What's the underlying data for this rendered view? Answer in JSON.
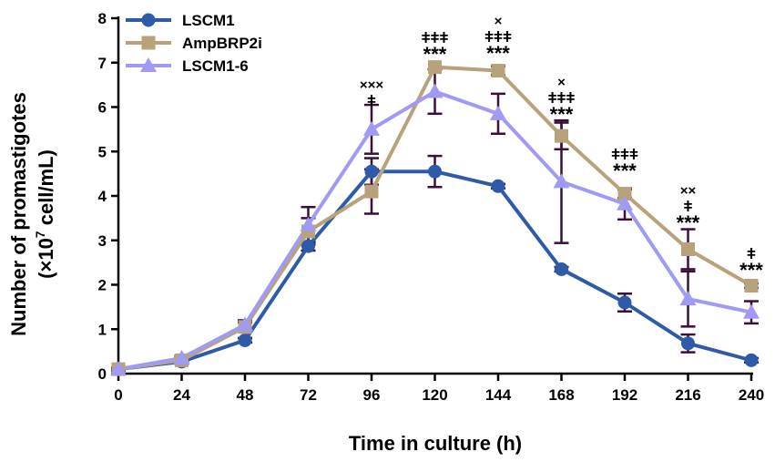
{
  "chart_data": {
    "type": "line",
    "xlabel": "Time in culture (h)",
    "ylabel_line1": "Number of promastigotes",
    "ylabel_line2": "(×10",
    "ylabel_sup": "7",
    "ylabel_line2_end": " cell/mL)",
    "x": [
      0,
      24,
      48,
      72,
      96,
      120,
      144,
      168,
      192,
      216,
      240
    ],
    "xticks": [
      "0",
      "24",
      "48",
      "72",
      "96",
      "120",
      "144",
      "168",
      "192",
      "216",
      "240"
    ],
    "xlim": [
      0,
      240
    ],
    "ylim": [
      0,
      8
    ],
    "yticks": [
      "0",
      "1",
      "2",
      "3",
      "4",
      "5",
      "6",
      "7",
      "8"
    ],
    "series": [
      {
        "name": "LSCM1",
        "color": "#2e5aa7",
        "marker": "circle",
        "values": [
          0.1,
          0.27,
          0.75,
          2.87,
          4.55,
          4.55,
          4.22,
          2.35,
          1.6,
          0.68,
          0.3
        ],
        "errors": [
          0.03,
          0.05,
          0.05,
          0.1,
          0.3,
          0.35,
          0.05,
          0.05,
          0.2,
          0.2,
          0.05
        ]
      },
      {
        "name": "AmpBRP2i",
        "color": "#b8a27c",
        "marker": "square",
        "values": [
          0.1,
          0.3,
          1.05,
          3.2,
          4.1,
          6.9,
          6.82,
          5.35,
          4.05,
          2.8,
          1.98
        ],
        "errors": [
          0.03,
          0.05,
          0.1,
          0.3,
          0.5,
          0.0,
          0.1,
          0.3,
          0.1,
          0.45,
          0.05
        ]
      },
      {
        "name": "LSCM1-6",
        "color": "#a09af5",
        "marker": "triangle",
        "values": [
          0.1,
          0.35,
          1.1,
          3.35,
          5.5,
          6.35,
          5.85,
          4.32,
          3.82,
          1.68,
          1.38
        ],
        "errors": [
          0.03,
          0.05,
          0.1,
          0.4,
          0.55,
          0.5,
          0.45,
          1.38,
          0.35,
          0.62,
          0.25
        ]
      }
    ],
    "annotations": [
      {
        "x": 96,
        "lines": [
          "×××",
          "ǂ"
        ]
      },
      {
        "x": 120,
        "lines": [
          "ǂǂǂ",
          "***"
        ]
      },
      {
        "x": 144,
        "lines": [
          "×",
          "ǂǂǂ",
          "***"
        ]
      },
      {
        "x": 168,
        "lines": [
          "×",
          "ǂǂǂ",
          "***"
        ]
      },
      {
        "x": 192,
        "lines": [
          "ǂǂǂ",
          "***"
        ]
      },
      {
        "x": 216,
        "lines": [
          "××",
          "ǂ",
          "***"
        ]
      },
      {
        "x": 240,
        "lines": [
          "ǂ",
          "***"
        ]
      }
    ],
    "error_bar_color": "#3a0f3a"
  }
}
